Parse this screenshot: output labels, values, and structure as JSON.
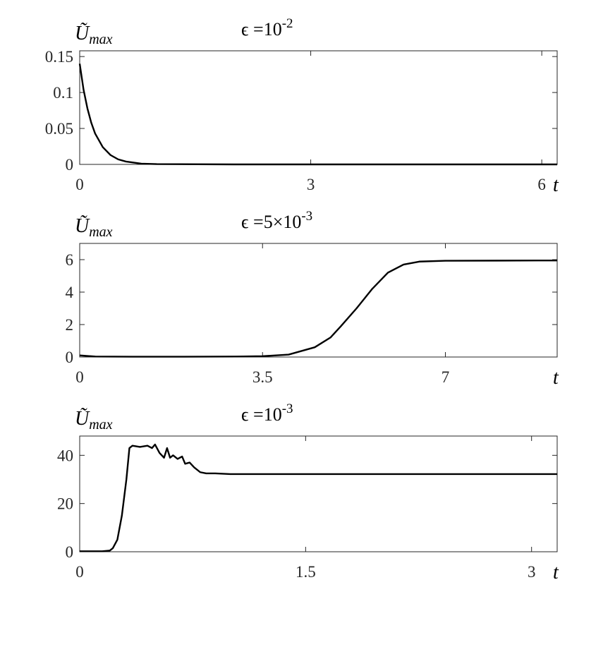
{
  "chart_data": [
    {
      "type": "line",
      "title": {
        "text": "ϵ =10",
        "superscript": "-2"
      },
      "ylabel": {
        "text": "Ũ",
        "subscript": "max"
      },
      "xlabel": "t",
      "xlim": [
        0,
        6.2
      ],
      "ylim": [
        0,
        0.158
      ],
      "xticks": [
        0,
        3,
        6
      ],
      "yticks": [
        0,
        0.05,
        0.1,
        0.15
      ],
      "series": [
        {
          "color": "#000000",
          "x": [
            0,
            0.05,
            0.1,
            0.15,
            0.2,
            0.3,
            0.4,
            0.5,
            0.6,
            0.8,
            1,
            2,
            3,
            4,
            5,
            6,
            6.2
          ],
          "values": [
            0.14,
            0.104,
            0.078,
            0.058,
            0.043,
            0.024,
            0.013,
            0.007,
            0.004,
            0.001,
            0.0004,
            0,
            0,
            0,
            0,
            0,
            0
          ]
        }
      ]
    },
    {
      "type": "line",
      "title": {
        "text": "ϵ =5×10",
        "superscript": "-3"
      },
      "ylabel": {
        "text": "Ũ",
        "subscript": "max"
      },
      "xlabel": "t",
      "xlim": [
        0,
        9.14
      ],
      "ylim": [
        0,
        7
      ],
      "xticks": [
        0,
        3.5,
        7
      ],
      "yticks": [
        0,
        2,
        4,
        6
      ],
      "series": [
        {
          "color": "#000000",
          "x": [
            0,
            0.3,
            1,
            2,
            3,
            3.5,
            4,
            4.5,
            4.8,
            5,
            5.3,
            5.6,
            5.9,
            6.2,
            6.5,
            7,
            8,
            9.14
          ],
          "values": [
            0.1,
            0.03,
            0.02,
            0.02,
            0.03,
            0.05,
            0.15,
            0.6,
            1.2,
            1.9,
            3.0,
            4.2,
            5.2,
            5.7,
            5.88,
            5.93,
            5.94,
            5.95
          ]
        }
      ]
    },
    {
      "type": "line",
      "title": {
        "text": "ϵ =10",
        "superscript": "-3"
      },
      "ylabel": {
        "text": "Ũ",
        "subscript": "max"
      },
      "xlabel": "t",
      "xlim": [
        0,
        3.17
      ],
      "ylim": [
        0,
        48
      ],
      "xticks": [
        0,
        1.5,
        3
      ],
      "yticks": [
        0,
        20,
        40
      ],
      "series": [
        {
          "color": "#000000",
          "x": [
            0,
            0.15,
            0.2,
            0.22,
            0.25,
            0.28,
            0.31,
            0.33,
            0.35,
            0.4,
            0.45,
            0.48,
            0.5,
            0.53,
            0.56,
            0.58,
            0.6,
            0.62,
            0.65,
            0.68,
            0.7,
            0.73,
            0.76,
            0.8,
            0.84,
            0.9,
            1,
            1.5,
            3.17
          ],
          "values": [
            0.2,
            0.2,
            0.5,
            1.5,
            5,
            15,
            30,
            43,
            44,
            43.5,
            44,
            43,
            44.5,
            41,
            39,
            43,
            39,
            40,
            38.5,
            39.5,
            36.5,
            37,
            35,
            33,
            32.5,
            32.5,
            32.2,
            32.2,
            32.2
          ]
        }
      ]
    }
  ]
}
